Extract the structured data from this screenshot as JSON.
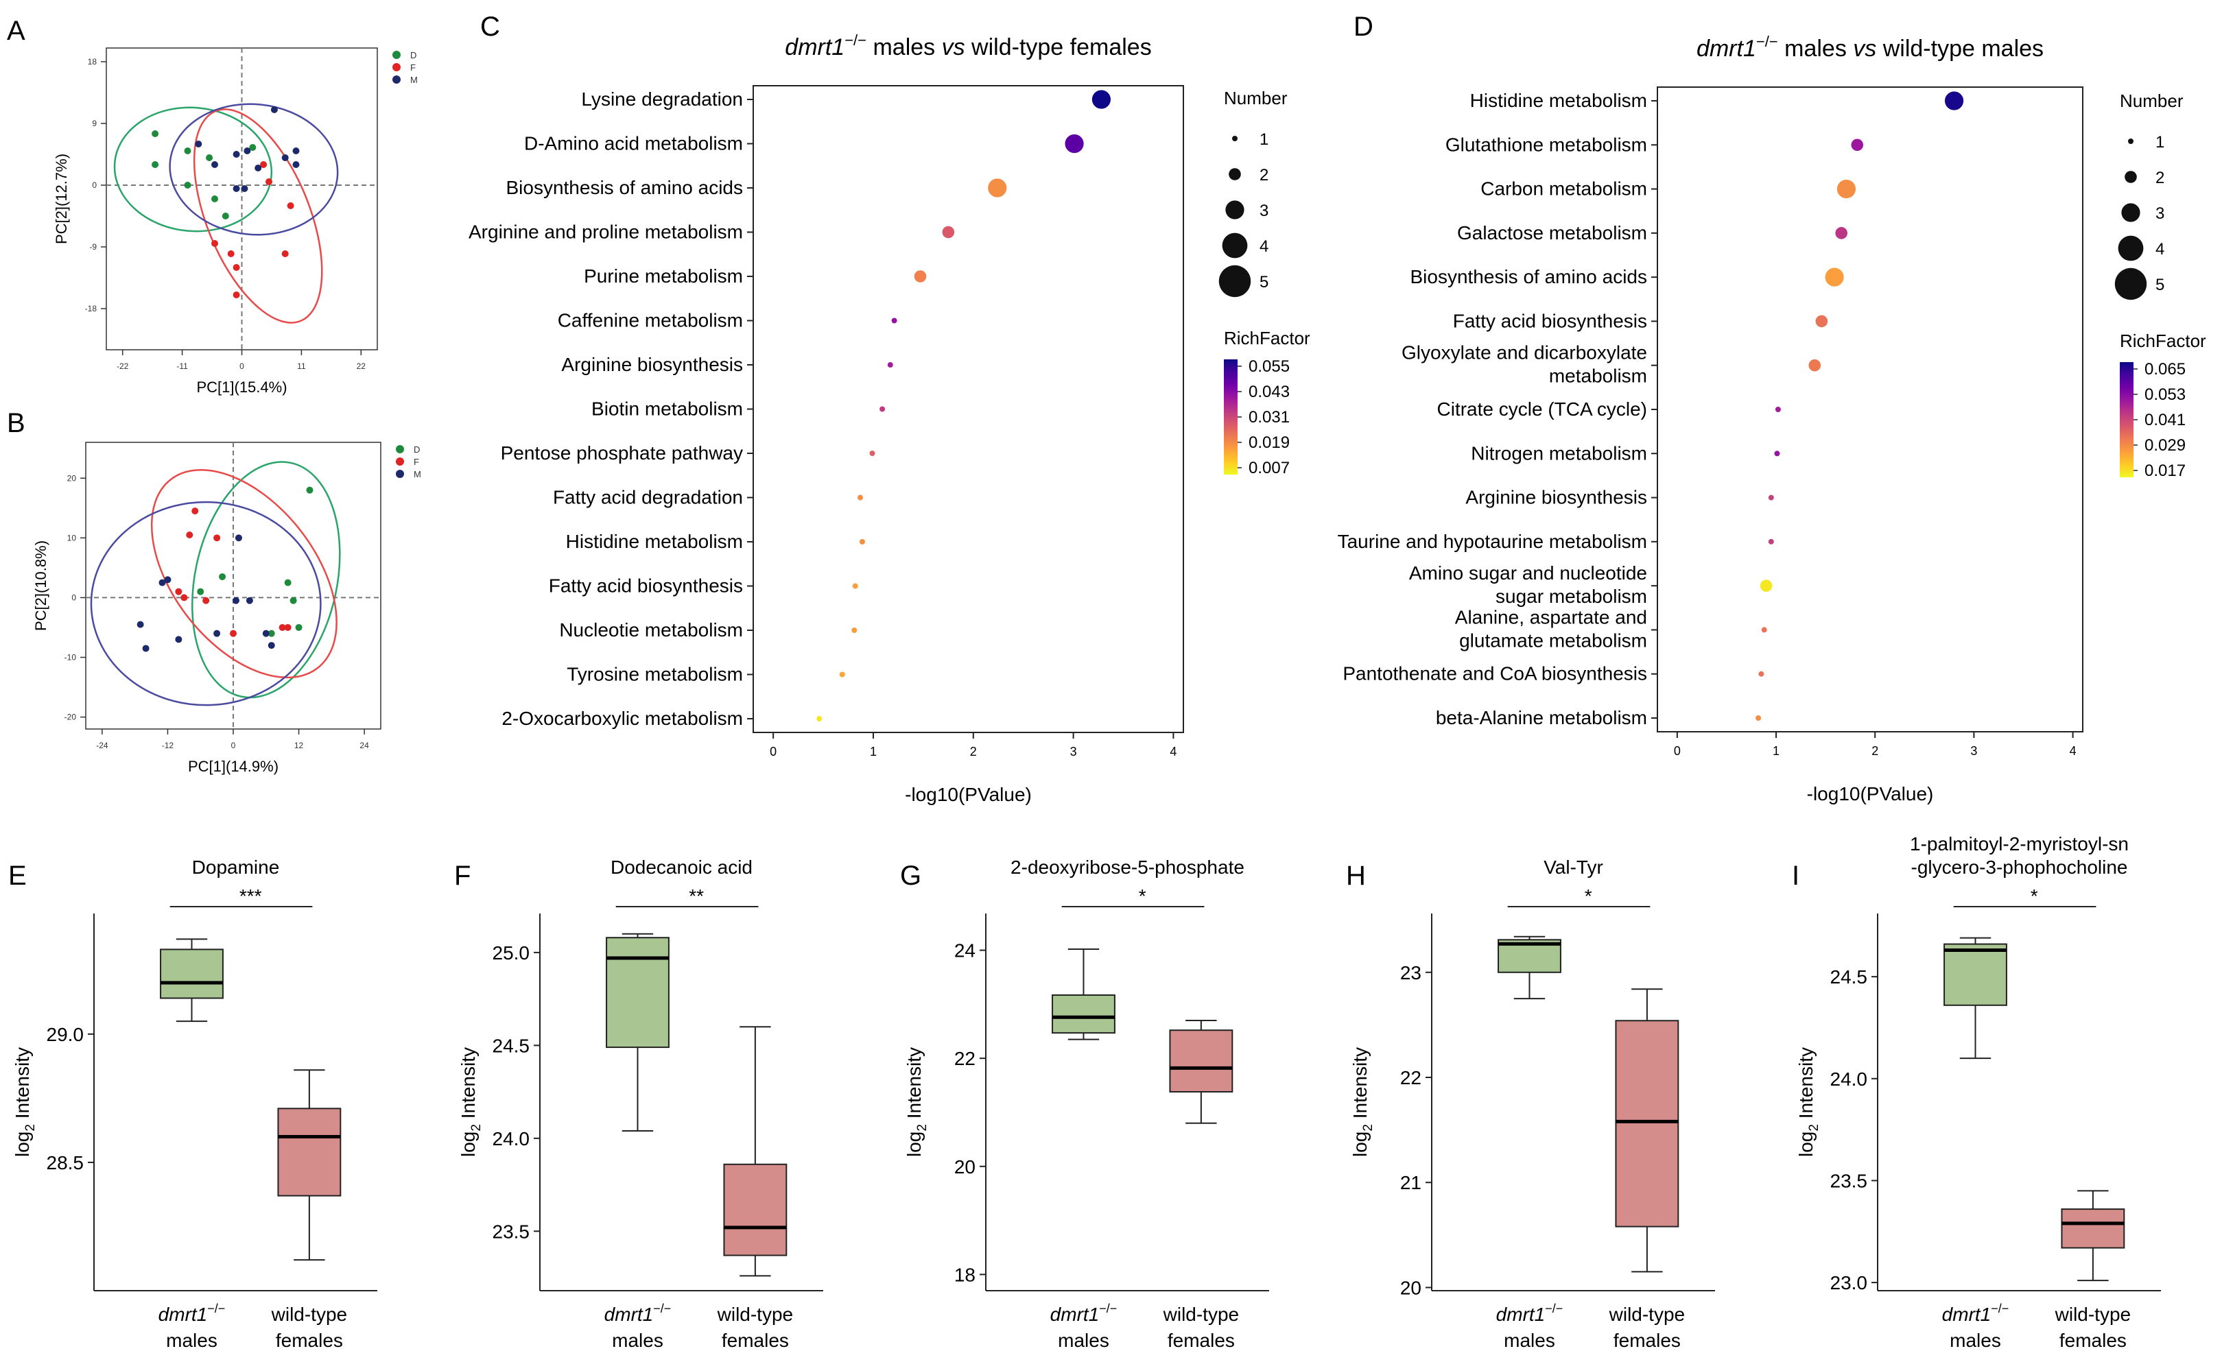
{
  "figure": {
    "background": "#ffffff"
  },
  "colors": {
    "green": "#1e8a3c",
    "red": "#e02424",
    "navy": "#1c2a6b",
    "pca_green_ellipse": "#2aa56a",
    "pca_red_ellipse": "#e84a4a",
    "pca_blue_ellipse": "#4a4aa0",
    "box_green": "#a8c592",
    "box_red": "#d48d8b",
    "gridline": "#888888"
  },
  "chart_data": [
    {
      "panel": "A",
      "type": "scatter",
      "xlabel": "PC[1](15.4%)",
      "ylabel": "PC[2](12.7%)",
      "xlim": [
        -25,
        25
      ],
      "ylim": [
        -24,
        20
      ],
      "xticks": [
        -22,
        -11,
        0,
        11,
        22
      ],
      "yticks": [
        -18,
        -9,
        0,
        9,
        18
      ],
      "legend": [
        {
          "label": "D",
          "color": "#1e8a3c"
        },
        {
          "label": "F",
          "color": "#e02424"
        },
        {
          "label": "M",
          "color": "#1c2a6b"
        }
      ],
      "legend_position": "top-right",
      "series": [
        {
          "name": "D",
          "color": "#1e8a3c",
          "points": [
            [
              -16,
              7.5
            ],
            [
              -16,
              3
            ],
            [
              -10,
              5
            ],
            [
              -10,
              0
            ],
            [
              -6,
              4
            ],
            [
              -5,
              -2
            ],
            [
              -3,
              -4.5
            ],
            [
              2,
              5.5
            ]
          ]
        },
        {
          "name": "F",
          "color": "#e02424",
          "points": [
            [
              4,
              3
            ],
            [
              5,
              0.5
            ],
            [
              9,
              -3
            ],
            [
              -5,
              -8.5
            ],
            [
              -2,
              -10
            ],
            [
              -1,
              -12
            ],
            [
              -1,
              -16
            ],
            [
              8,
              -10
            ]
          ]
        },
        {
          "name": "M",
          "color": "#1c2a6b",
          "points": [
            [
              6,
              11
            ],
            [
              -8,
              6
            ],
            [
              10,
              5
            ],
            [
              1,
              5
            ],
            [
              -5,
              3
            ],
            [
              -1,
              4.5
            ],
            [
              8,
              4
            ],
            [
              3,
              2.5
            ],
            [
              -1,
              -0.5
            ],
            [
              0.5,
              -0.5
            ],
            [
              10,
              3
            ]
          ]
        }
      ],
      "ellipses": [
        {
          "name": "D",
          "cx": -9,
          "cy": 2.3,
          "rx": 14.5,
          "ry": 9,
          "angle": -5
        },
        {
          "name": "F",
          "cx": 3,
          "cy": -4.5,
          "rx": 9.5,
          "ry": 16.5,
          "angle": 22
        },
        {
          "name": "M",
          "cx": 2.2,
          "cy": 2.3,
          "rx": 15.5,
          "ry": 9.5,
          "angle": -5
        }
      ]
    },
    {
      "panel": "B",
      "type": "scatter",
      "xlabel": "PC[1](14.9%)",
      "ylabel": "PC[2](10.8%)",
      "xlim": [
        -27,
        27
      ],
      "ylim": [
        -22,
        26
      ],
      "xticks": [
        -24,
        -12,
        0,
        12,
        24
      ],
      "yticks": [
        -20,
        -10,
        0,
        10,
        20
      ],
      "legend": [
        {
          "label": "D",
          "color": "#1e8a3c"
        },
        {
          "label": "F",
          "color": "#e02424"
        },
        {
          "label": "M",
          "color": "#1c2a6b"
        }
      ],
      "legend_position": "top-right",
      "series": [
        {
          "name": "D",
          "color": "#1e8a3c",
          "points": [
            [
              14,
              18
            ],
            [
              10,
              2.5
            ],
            [
              -2,
              3.5
            ],
            [
              -6,
              1
            ],
            [
              11,
              -0.5
            ],
            [
              12,
              -5
            ],
            [
              7,
              -6
            ]
          ]
        },
        {
          "name": "F",
          "color": "#e02424",
          "points": [
            [
              -7,
              14.5
            ],
            [
              -8,
              10.5
            ],
            [
              -10,
              1
            ],
            [
              -9,
              0
            ],
            [
              -5,
              -0.5
            ],
            [
              0,
              -6
            ],
            [
              9,
              -5
            ],
            [
              10,
              -5
            ],
            [
              -3,
              10
            ]
          ]
        },
        {
          "name": "M",
          "color": "#1c2a6b",
          "points": [
            [
              -13,
              2.5
            ],
            [
              -12,
              3
            ],
            [
              -17,
              -4.5
            ],
            [
              -16,
              -8.5
            ],
            [
              -10,
              -7
            ],
            [
              -3,
              -6
            ],
            [
              0.5,
              -0.5
            ],
            [
              3,
              -0.5
            ],
            [
              6,
              -6
            ],
            [
              7,
              -8
            ],
            [
              1,
              10
            ]
          ]
        }
      ],
      "ellipses": [
        {
          "name": "D",
          "cx": 6,
          "cy": 3,
          "rx": 13,
          "ry": 20,
          "angle": -12
        },
        {
          "name": "F",
          "cx": 2,
          "cy": 4,
          "rx": 13,
          "ry": 20,
          "angle": 38
        },
        {
          "name": "M",
          "cx": -5,
          "cy": -1,
          "rx": 21,
          "ry": 17,
          "angle": 0
        }
      ]
    },
    {
      "panel": "C",
      "type": "bubble",
      "title_gene": "dmrt1",
      "title_sup": "−/−",
      "title_mid": " males ",
      "title_vs": "vs",
      "title_end": " wild-type females",
      "xlabel": "-log10(PValue)",
      "xlim": [
        -0.2,
        4.1
      ],
      "xticks": [
        0,
        1,
        2,
        3,
        4
      ],
      "size_legend_title": "Number",
      "size_legend": [
        1,
        2,
        3,
        4,
        5
      ],
      "color_legend_title": "RichFactor",
      "color_ticks": [
        "0.055",
        "0.043",
        "0.031",
        "0.019",
        "0.007"
      ],
      "color_range": [
        0.007,
        0.055
      ],
      "categories": [
        "Lysine degradation",
        "D-Amino acid metabolism",
        "Biosynthesis of amino acids",
        "Arginine and proline metabolism",
        "Purine metabolism",
        "Caffenine metabolism",
        "Arginine biosynthesis",
        "Biotin metabolism",
        "Pentose phosphate pathway",
        "Fatty acid degradation",
        "Histidine metabolism",
        "Fatty acid biosynthesis",
        "Nucleotie metabolism",
        "Tyrosine metabolism",
        "2-Oxocarboxylic metabolism"
      ],
      "x": [
        3.28,
        3.01,
        2.24,
        1.75,
        1.47,
        1.21,
        1.17,
        1.09,
        0.99,
        0.87,
        0.89,
        0.82,
        0.81,
        0.69,
        0.46
      ],
      "number": [
        3,
        3,
        3,
        2,
        2,
        1,
        1,
        1,
        1,
        1,
        1,
        1,
        1,
        1,
        1
      ],
      "richfactor": [
        0.055,
        0.047,
        0.02,
        0.028,
        0.022,
        0.04,
        0.038,
        0.033,
        0.027,
        0.02,
        0.02,
        0.018,
        0.018,
        0.017,
        0.009
      ]
    },
    {
      "panel": "D",
      "type": "bubble",
      "title_gene": "dmrt1",
      "title_sup": "−/−",
      "title_mid": " males ",
      "title_vs": "vs",
      "title_end": " wild-type males",
      "xlabel": "-log10(PValue)",
      "xlim": [
        -0.2,
        4.1
      ],
      "xticks": [
        0,
        1,
        2,
        3,
        4
      ],
      "size_legend_title": "Number",
      "size_legend": [
        1,
        2,
        3,
        4,
        5
      ],
      "color_legend_title": "RichFactor",
      "color_ticks": [
        "0.065",
        "0.053",
        "0.041",
        "0.029",
        "0.017"
      ],
      "color_range": [
        0.017,
        0.065
      ],
      "categories": [
        "Histidine metabolism",
        "Glutathione metabolism",
        "Carbon metabolism",
        "Galactose metabolism",
        "Biosynthesis of amino acids",
        "Fatty acid biosynthesis",
        "Glyoxylate and dicarboxylate|metabolism",
        "Citrate cycle (TCA cycle)",
        "Nitrogen metabolism",
        "Arginine biosynthesis",
        "Taurine and hypotaurine metabolism",
        "Amino sugar and nucleotide|sugar metabolism",
        "Alanine, aspartate and|glutamate metabolism",
        "Pantothenate and CoA biosynthesis",
        "beta-Alanine metabolism"
      ],
      "x": [
        2.8,
        1.82,
        1.71,
        1.66,
        1.59,
        1.46,
        1.39,
        1.02,
        1.01,
        0.95,
        0.95,
        0.9,
        0.88,
        0.85,
        0.82
      ],
      "number": [
        3,
        2,
        3,
        2,
        3,
        2,
        2,
        1,
        1,
        1,
        1,
        2,
        1,
        1,
        1
      ],
      "richfactor": [
        0.064,
        0.049,
        0.03,
        0.044,
        0.028,
        0.034,
        0.033,
        0.048,
        0.05,
        0.042,
        0.042,
        0.019,
        0.034,
        0.034,
        0.03
      ]
    },
    {
      "panel": "E",
      "type": "box",
      "title": "Dopamine",
      "ylabel_main": "log",
      "ylabel_sub": "2",
      "ylabel_end": " Intensity",
      "ylim": [
        28.0,
        29.47
      ],
      "yticks": [
        28.5,
        29.0
      ],
      "ytick_labels": [
        "28.5",
        "29.0"
      ],
      "significance": "***",
      "groups": [
        {
          "label_gene": "dmrt1",
          "label_sup": "−/−",
          "label_line2": "males",
          "color": "#a8c592",
          "min": 29.05,
          "q1": 29.14,
          "median": 29.2,
          "q3": 29.33,
          "max": 29.37
        },
        {
          "label_line1": "wild-type",
          "label_line2": "females",
          "color": "#d48d8b",
          "min": 28.12,
          "q1": 28.37,
          "median": 28.6,
          "q3": 28.71,
          "max": 28.86
        }
      ]
    },
    {
      "panel": "F",
      "type": "box",
      "title": "Dodecanoic acid",
      "ylabel_main": "log",
      "ylabel_sub": "2",
      "ylabel_end": " Intensity",
      "ylim": [
        23.18,
        25.21
      ],
      "yticks": [
        23.5,
        24.0,
        24.5,
        25.0
      ],
      "ytick_labels": [
        "23.5",
        "24.0",
        "24.5",
        "25.0"
      ],
      "significance": "**",
      "groups": [
        {
          "label_gene": "dmrt1",
          "label_sup": "−/−",
          "label_line2": "males",
          "color": "#a8c592",
          "min": 24.04,
          "q1": 24.49,
          "median": 24.97,
          "q3": 25.08,
          "max": 25.1
        },
        {
          "label_line1": "wild-type",
          "label_line2": "females",
          "color": "#d48d8b",
          "min": 23.26,
          "q1": 23.37,
          "median": 23.52,
          "q3": 23.86,
          "max": 24.6
        }
      ]
    },
    {
      "panel": "G",
      "type": "box",
      "title": "2-deoxyribose-5-phosphate",
      "ylabel_main": "log",
      "ylabel_sub": "2",
      "ylabel_end": " Intensity",
      "ylim": [
        17.7,
        24.68
      ],
      "yticks": [
        18,
        20,
        22,
        24
      ],
      "ytick_labels": [
        "18",
        "20",
        "22",
        "24"
      ],
      "significance": "*",
      "groups": [
        {
          "label_gene": "dmrt1",
          "label_sup": "−/−",
          "label_line2": "males",
          "color": "#a8c592",
          "min": 22.35,
          "q1": 22.47,
          "median": 22.76,
          "q3": 23.17,
          "max": 24.02
        },
        {
          "label_line1": "wild-type",
          "label_line2": "females",
          "color": "#d48d8b",
          "min": 20.8,
          "q1": 21.38,
          "median": 21.82,
          "q3": 22.52,
          "max": 22.7
        }
      ]
    },
    {
      "panel": "H",
      "type": "box",
      "title": "Val-Tyr",
      "ylabel_main": "log",
      "ylabel_sub": "2",
      "ylabel_end": " Intensity",
      "ylim": [
        19.97,
        23.56
      ],
      "yticks": [
        20,
        21,
        22,
        23
      ],
      "ytick_labels": [
        "20",
        "21",
        "22",
        "23"
      ],
      "significance": "*",
      "groups": [
        {
          "label_gene": "dmrt1",
          "label_sup": "−/−",
          "label_line2": "males",
          "color": "#a8c592",
          "min": 22.75,
          "q1": 23.0,
          "median": 23.27,
          "q3": 23.31,
          "max": 23.34
        },
        {
          "label_line1": "wild-type",
          "label_line2": "females",
          "color": "#d48d8b",
          "min": 20.15,
          "q1": 20.58,
          "median": 21.58,
          "q3": 22.54,
          "max": 22.84
        }
      ]
    },
    {
      "panel": "I",
      "type": "box",
      "title": "1-palmitoyl-2-myristoyl-sn|-glycero-3-phophocholine",
      "ylabel_main": "log",
      "ylabel_sub": "2",
      "ylabel_end": " Intensity",
      "ylim": [
        22.96,
        24.81
      ],
      "yticks": [
        23.0,
        23.5,
        24.0,
        24.5
      ],
      "ytick_labels": [
        "23.0",
        "23.5",
        "24.0",
        "24.5"
      ],
      "significance": "*",
      "groups": [
        {
          "label_gene": "dmrt1",
          "label_sup": "−/−",
          "label_line2": "males",
          "color": "#a8c592",
          "min": 24.1,
          "q1": 24.36,
          "median": 24.63,
          "q3": 24.66,
          "max": 24.69
        },
        {
          "label_line1": "wild-type",
          "label_line2": "females",
          "color": "#d48d8b",
          "min": 23.01,
          "q1": 23.17,
          "median": 23.29,
          "q3": 23.36,
          "max": 23.45
        }
      ]
    }
  ],
  "panel_letters": {
    "A": "A",
    "B": "B",
    "C": "C",
    "D": "D",
    "E": "E",
    "F": "F",
    "G": "G",
    "H": "H",
    "I": "I"
  }
}
